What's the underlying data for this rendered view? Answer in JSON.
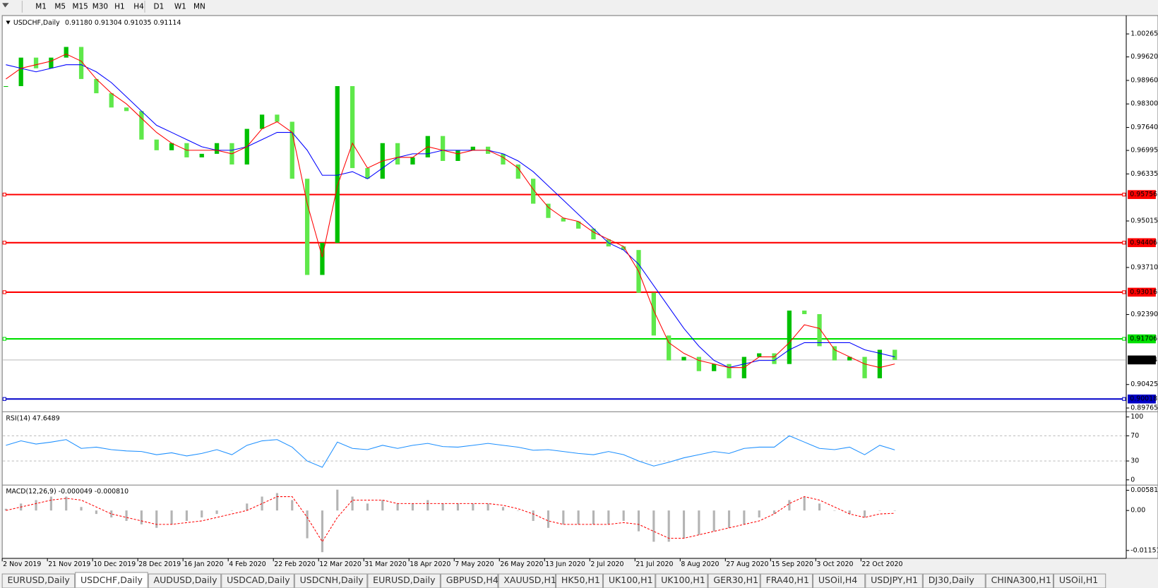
{
  "toolbar": {
    "timeframes": [
      "M1",
      "M5",
      "M15",
      "M30",
      "H1",
      "H4",
      "D1",
      "W1",
      "MN"
    ]
  },
  "chart_data": [
    {
      "type": "candlestick",
      "title": "USDCHF,Daily",
      "ohlc": "0.91180 0.91304 0.91035 0.91114",
      "up_color": "#00c000",
      "down_color": "#5fe84a",
      "values": [
        0.988,
        0.996,
        0.993,
        0.996,
        0.999,
        0.99,
        0.986,
        0.982,
        0.981,
        0.973,
        0.97,
        0.972,
        0.968,
        0.969,
        0.972,
        0.966,
        0.976,
        0.98,
        0.978,
        0.962,
        0.935,
        0.944,
        0.988,
        0.965,
        0.962,
        0.972,
        0.966,
        0.968,
        0.974,
        0.967,
        0.97,
        0.971,
        0.969,
        0.966,
        0.962,
        0.955,
        0.951,
        0.95,
        0.948,
        0.945,
        0.943,
        0.942,
        0.93,
        0.918,
        0.911,
        0.912,
        0.908,
        0.91,
        0.906,
        0.912,
        0.913,
        0.91,
        0.925,
        0.924,
        0.915,
        0.911,
        0.912,
        0.906,
        0.914,
        0.91114
      ],
      "series": [
        {
          "color": "#0000ff",
          "values": [
            0.994,
            0.993,
            0.992,
            0.993,
            0.994,
            0.994,
            0.992,
            0.989,
            0.985,
            0.981,
            0.977,
            0.975,
            0.973,
            0.971,
            0.97,
            0.97,
            0.971,
            0.973,
            0.975,
            0.975,
            0.97,
            0.963,
            0.963,
            0.964,
            0.962,
            0.965,
            0.968,
            0.969,
            0.969,
            0.97,
            0.97,
            0.97,
            0.97,
            0.969,
            0.967,
            0.964,
            0.96,
            0.956,
            0.952,
            0.948,
            0.944,
            0.942,
            0.938,
            0.932,
            0.926,
            0.92,
            0.915,
            0.911,
            0.909,
            0.91,
            0.911,
            0.911,
            0.914,
            0.916,
            0.916,
            0.916,
            0.916,
            0.914,
            0.913,
            0.912
          ]
        },
        {
          "color": "#ff0000",
          "values": [
            0.99,
            0.993,
            0.994,
            0.995,
            0.997,
            0.995,
            0.99,
            0.986,
            0.983,
            0.979,
            0.975,
            0.972,
            0.97,
            0.97,
            0.97,
            0.969,
            0.971,
            0.976,
            0.978,
            0.975,
            0.955,
            0.94,
            0.96,
            0.972,
            0.965,
            0.967,
            0.968,
            0.968,
            0.971,
            0.97,
            0.969,
            0.97,
            0.97,
            0.968,
            0.965,
            0.959,
            0.954,
            0.951,
            0.95,
            0.947,
            0.945,
            0.943,
            0.936,
            0.925,
            0.916,
            0.913,
            0.911,
            0.91,
            0.909,
            0.909,
            0.912,
            0.912,
            0.916,
            0.921,
            0.92,
            0.914,
            0.912,
            0.91,
            0.909,
            0.91
          ]
        }
      ],
      "ylim": [
        0.8966,
        1.0076
      ],
      "yticks": [
        1.00265,
        {
          "value": 0.9962,
          "label": "0.99620"
        },
        {
          "value": 0.9896,
          "label": "0.98960"
        },
        {
          "value": 0.983,
          "label": "0.98300"
        },
        {
          "value": 0.9764,
          "label": "0.97640"
        },
        0.96995,
        0.96335,
        0.95015,
        {
          "value": 0.9371,
          "label": "0.93710"
        },
        {
          "value": 0.9239,
          "label": "0.92390"
        },
        0.90425,
        0.89765
      ],
      "levels": [
        {
          "value": 0.95756,
          "color": "#ff0000"
        },
        {
          "value": 0.94406,
          "color": "#ff0000"
        },
        {
          "value": 0.93016,
          "color": "#ff0000"
        },
        {
          "value": 0.91706,
          "color": "#00e000"
        },
        {
          "value": 0.90018,
          "color": "#0000c8"
        }
      ],
      "current_price": 0.91114,
      "date_labels": [
        "2 Nov 2019",
        "21 Nov 2019",
        "10 Dec 2019",
        "28 Dec 2019",
        "16 Jan 2020",
        "4 Feb 2020",
        "22 Feb 2020",
        "12 Mar 2020",
        "31 Mar 2020",
        "18 Apr 2020",
        "7 May 2020",
        "26 May 2020",
        "13 Jun 2020",
        "2 Jul 2020",
        "21 Jul 2020",
        "8 Aug 2020",
        "27 Aug 2020",
        "15 Sep 2020",
        "3 Oct 2020",
        "22 Oct 2020"
      ]
    },
    {
      "type": "line",
      "title": "RSI(14) 47.6489",
      "color": "#1e90ff",
      "values": [
        55,
        62,
        57,
        60,
        64,
        50,
        52,
        48,
        46,
        45,
        40,
        43,
        38,
        42,
        48,
        40,
        55,
        62,
        64,
        52,
        30,
        20,
        60,
        50,
        48,
        55,
        50,
        55,
        58,
        53,
        52,
        55,
        58,
        55,
        52,
        47,
        48,
        45,
        42,
        40,
        45,
        40,
        30,
        22,
        28,
        35,
        40,
        45,
        42,
        50,
        52,
        52,
        70,
        60,
        50,
        48,
        52,
        40,
        55,
        47.6489
      ],
      "ylim": [
        -7.1,
        107.1
      ],
      "yticks": [
        100,
        70,
        30,
        0
      ],
      "dashed_levels": [
        70,
        30
      ]
    },
    {
      "type": "bar",
      "title": "MACD(12,26,9) -0.000049 -0.000810",
      "color": "#b4b4b4",
      "signal_color": "#ff0000",
      "values": [
        0.0005,
        0.002,
        0.003,
        0.004,
        0.004,
        0.001,
        -0.001,
        -0.002,
        -0.003,
        -0.004,
        -0.005,
        -0.004,
        -0.003,
        -0.002,
        -0.001,
        0.0,
        0.002,
        0.004,
        0.005,
        0.003,
        -0.008,
        -0.012,
        0.006,
        0.004,
        0.002,
        0.003,
        0.002,
        0.002,
        0.003,
        0.002,
        0.002,
        0.002,
        0.002,
        0.001,
        0.0,
        -0.003,
        -0.005,
        -0.004,
        -0.004,
        -0.004,
        -0.004,
        -0.003,
        -0.006,
        -0.009,
        -0.009,
        -0.008,
        -0.007,
        -0.006,
        -0.005,
        -0.004,
        -0.002,
        -0.001,
        0.003,
        0.004,
        0.002,
        0.0,
        -0.001,
        -0.002,
        0.0,
        -4.9e-05
      ],
      "signal": [
        0.0,
        0.001,
        0.002,
        0.003,
        0.0035,
        0.003,
        0.001,
        -0.001,
        -0.002,
        -0.003,
        -0.004,
        -0.004,
        -0.0035,
        -0.003,
        -0.002,
        -0.001,
        0.0,
        0.002,
        0.004,
        0.004,
        -0.002,
        -0.009,
        -0.002,
        0.003,
        0.003,
        0.003,
        0.002,
        0.002,
        0.002,
        0.002,
        0.002,
        0.002,
        0.002,
        0.0015,
        0.0005,
        -0.001,
        -0.003,
        -0.004,
        -0.004,
        -0.004,
        -0.004,
        -0.0035,
        -0.004,
        -0.006,
        -0.008,
        -0.008,
        -0.007,
        -0.006,
        -0.005,
        -0.004,
        -0.003,
        -0.001,
        0.002,
        0.004,
        0.003,
        0.001,
        -0.001,
        -0.002,
        -0.001,
        -0.00081
      ],
      "ylim": [
        -0.01358,
        0.00711
      ],
      "yticks": [
        0.005818,
        {
          "value": 0,
          "label": "0.00"
        },
        -0.011514
      ]
    }
  ],
  "tabs": [
    "EURUSD,Daily",
    "USDCHF,Daily",
    "AUDUSD,Daily",
    "USDCAD,Daily",
    "USDCNH,Daily",
    "EURUSD,Daily",
    "GBPUSD,H4",
    "XAUUSD,H1",
    "HK50,H1",
    "UK100,H1",
    "UK100,H1",
    "GER30,H1",
    "FRA40,H1",
    "USOil,H4",
    "USDJPY,H1",
    "DJ30,Daily",
    "CHINA300,H1",
    "USOil,H1"
  ],
  "active_tab": 1
}
